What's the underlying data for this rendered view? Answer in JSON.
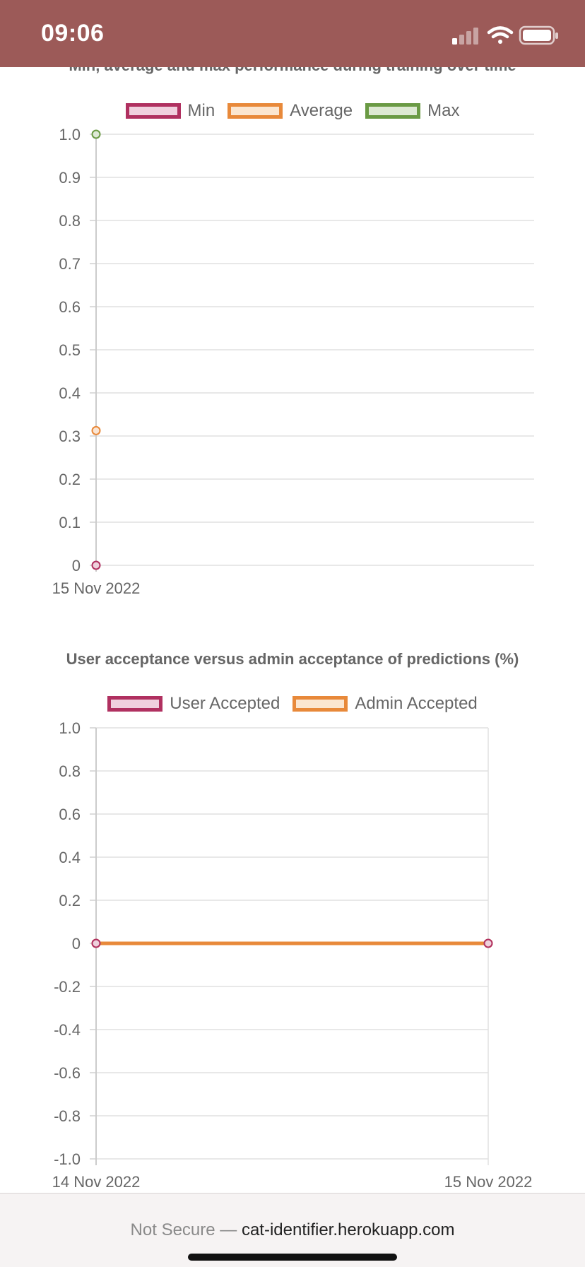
{
  "status_bar": {
    "time": "09:06"
  },
  "browser": {
    "url_prefix": "Not Secure —",
    "url_domain": "cat-identifier.herokuapp.com"
  },
  "chart_data": [
    {
      "type": "line",
      "title": "Min, average and max performance during training over time",
      "categories": [
        "15 Nov 2022"
      ],
      "series": [
        {
          "name": "Min",
          "values": [
            0
          ],
          "color": "#b03060"
        },
        {
          "name": "Average",
          "values": [
            0.3125
          ],
          "color": "#e8893a"
        },
        {
          "name": "Max",
          "values": [
            1.0
          ],
          "color": "#6a9a44"
        }
      ],
      "yticks": [
        "1.0",
        "0.9",
        "0.8",
        "0.7",
        "0.6",
        "0.5",
        "0.4",
        "0.3",
        "0.2",
        "0.1",
        "0"
      ],
      "ylim": [
        0,
        1
      ],
      "grid": true,
      "legend": "top-center"
    },
    {
      "type": "line",
      "title": "User acceptance versus admin acceptance of predictions (%)",
      "categories": [
        "14 Nov 2022",
        "15 Nov 2022"
      ],
      "series": [
        {
          "name": "User Accepted",
          "values": [
            0,
            0
          ],
          "color": "#b03060"
        },
        {
          "name": "Admin Accepted",
          "values": [
            0,
            0
          ],
          "color": "#e8893a"
        }
      ],
      "yticks": [
        "1.0",
        "0.8",
        "0.6",
        "0.4",
        "0.2",
        "0",
        "-0.2",
        "-0.4",
        "-0.6",
        "-0.8",
        "-1.0"
      ],
      "ylim": [
        -1,
        1
      ],
      "grid": true,
      "legend": "top-center"
    }
  ]
}
